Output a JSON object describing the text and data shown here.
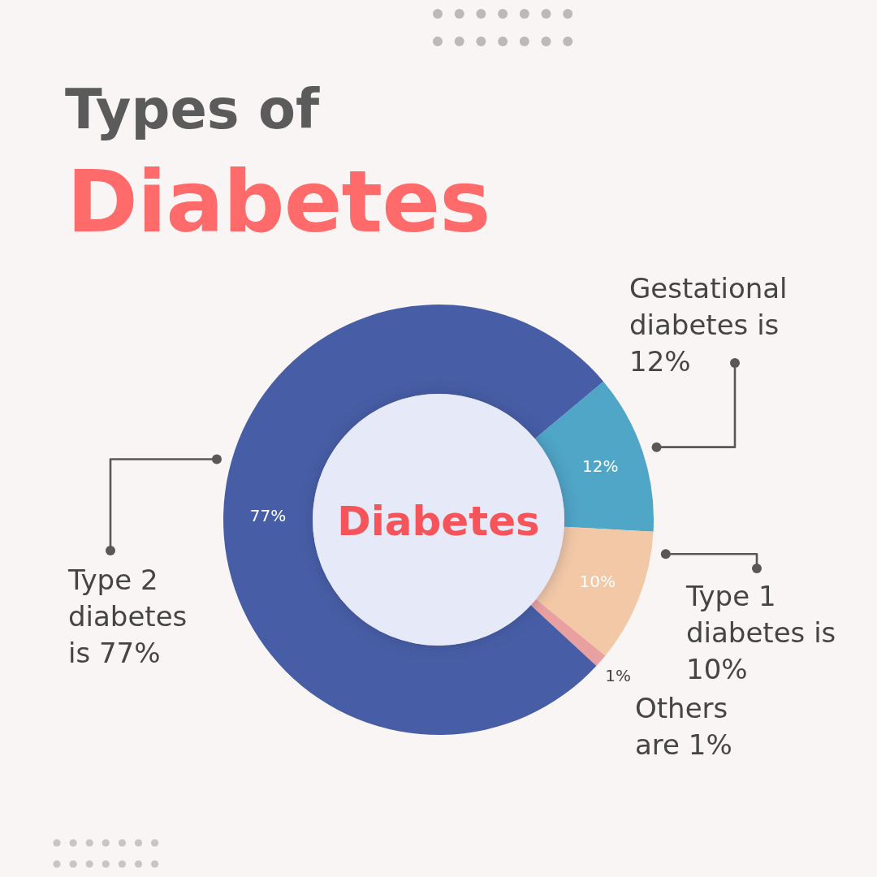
{
  "chart_data": {
    "type": "donut",
    "title": "Types of",
    "subtitle": "Diabetes",
    "categories": [
      "Gestational diabetes is 12%",
      "Type 1 diabetes is 10%",
      "Others are 1%",
      "Type 2 diabetes is 77%"
    ],
    "values": [
      12,
      10,
      1,
      77
    ],
    "colors": [
      "#4fa6c6",
      "#f2c8a6",
      "#e8a0a0",
      "#475ea6"
    ],
    "value_labels": [
      "12%",
      "10%",
      "1%",
      "77%"
    ],
    "annotations": [
      "Diabetes"
    ]
  }
}
